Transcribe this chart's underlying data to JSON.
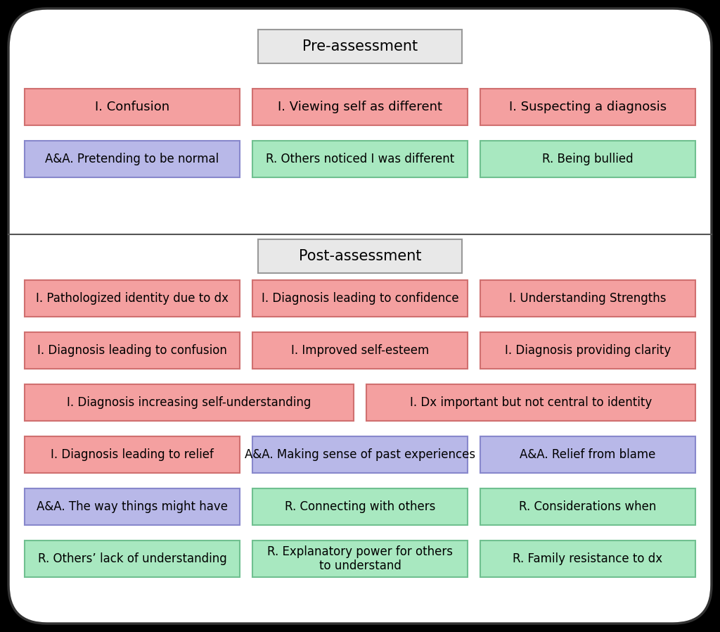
{
  "colors": {
    "I": "#f4a0a0",
    "AA": "#b8b8e8",
    "R": "#a8e8c0",
    "header": "#e8e8e8"
  },
  "border_colors": {
    "I": "#d07070",
    "AA": "#8888cc",
    "R": "#70c090",
    "header": "#999999"
  },
  "pre_header": "Pre-assessment",
  "post_header": "Post-assessment",
  "pre_rows": [
    [
      {
        "text": "I. Confusion",
        "type": "I"
      },
      {
        "text": "I. Viewing self as different",
        "type": "I"
      },
      {
        "text": "I. Suspecting a diagnosis",
        "type": "I"
      }
    ],
    [
      {
        "text": "A&A. Pretending to be normal",
        "type": "AA"
      },
      {
        "text": "R. Others noticed I was different",
        "type": "R"
      },
      {
        "text": "R. Being bullied",
        "type": "R"
      }
    ]
  ],
  "post_rows": [
    [
      {
        "text": "I. Pathologized identity due to dx",
        "type": "I",
        "col": 0
      },
      {
        "text": "I. Diagnosis leading to confidence",
        "type": "I",
        "col": 1
      },
      {
        "text": "I. Understanding Strengths",
        "type": "I",
        "col": 2
      }
    ],
    [
      {
        "text": "I. Diagnosis leading to confusion",
        "type": "I",
        "col": 0
      },
      {
        "text": "I. Improved self-esteem",
        "type": "I",
        "col": 1
      },
      {
        "text": "I. Diagnosis providing clarity",
        "type": "I",
        "col": 2
      }
    ],
    [
      {
        "text": "I. Diagnosis increasing self-understanding",
        "type": "I",
        "wide": true
      },
      {
        "text": "I. Dx important but not central to identity",
        "type": "I",
        "wide": true
      }
    ],
    [
      {
        "text": "I. Diagnosis leading to relief",
        "type": "I",
        "col": 0
      },
      {
        "text": "A&A. Making sense of past experiences",
        "type": "AA",
        "col": 1
      },
      {
        "text": "A&A. Relief from blame",
        "type": "AA",
        "col": 2
      }
    ],
    [
      {
        "text": "A&A. The way things might have",
        "type": "AA",
        "col": 0
      },
      {
        "text": "R. Connecting with others",
        "type": "R",
        "col": 1
      },
      {
        "text": "R. Considerations when",
        "type": "R",
        "col": 2
      }
    ],
    [
      {
        "text": "R. Others’ lack of understanding",
        "type": "R",
        "col": 0
      },
      {
        "text": "R. Explanatory power for others\nto understand",
        "type": "R",
        "col": 1
      },
      {
        "text": "R. Family resistance to dx",
        "type": "R",
        "col": 2
      }
    ]
  ]
}
